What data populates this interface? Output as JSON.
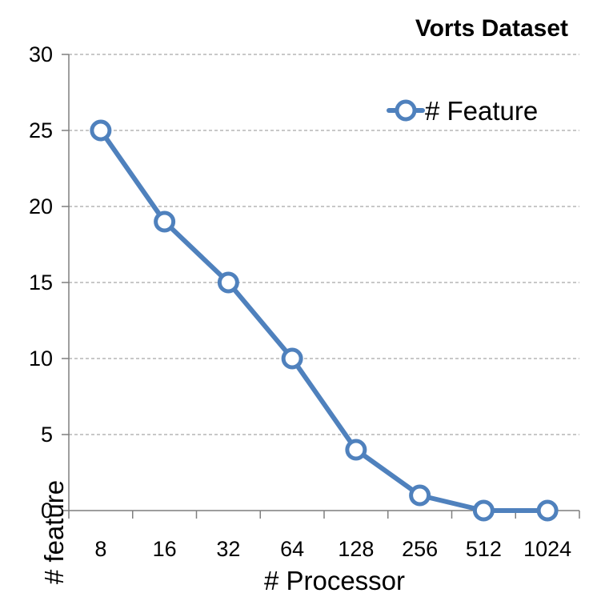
{
  "chart_data": {
    "type": "line",
    "title": "Vorts Dataset",
    "xlabel": "# Processor",
    "ylabel": "# feature",
    "categories": [
      "8",
      "16",
      "32",
      "64",
      "128",
      "256",
      "512",
      "1024"
    ],
    "series": [
      {
        "name": "# Feature",
        "values": [
          25,
          19,
          15,
          10,
          4,
          1,
          0,
          0
        ]
      }
    ],
    "ylim": [
      0,
      30
    ],
    "yticks": [
      0,
      5,
      10,
      15,
      20,
      25,
      30
    ],
    "grid": "horizontal-dashed",
    "legend_position": "top-right",
    "colors": {
      "series": "#4f81bd",
      "marker_fill": "#ffffff",
      "grid": "#a6a6a6",
      "axis": "#7f7f7f"
    }
  }
}
